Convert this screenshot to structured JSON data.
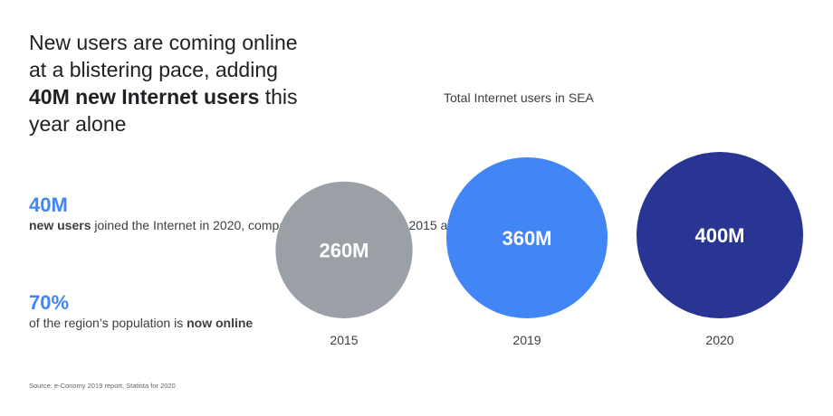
{
  "headline": {
    "part1": "New users are coming online at a blistering pace, adding ",
    "bold1": "40M new Internet users",
    "part2": " this year alone"
  },
  "stats": [
    {
      "value": "40M",
      "desc_bold": "new users",
      "desc_rest": " joined the Internet in 2020, compared to 100M between 2015 and 2019"
    },
    {
      "value": "70%",
      "desc_pre": "of the region’s population is ",
      "desc_bold": "now online"
    }
  ],
  "source": "Source: e-Conomy 2019 report, Statista for 2020",
  "colors": {
    "accent": "#4285f4",
    "gray": "#9aa0a6",
    "blue": "#4285f4",
    "navy": "#283593"
  },
  "chart_data": {
    "type": "bubble",
    "title": "Total Internet users in SEA",
    "categories": [
      "2015",
      "2019",
      "2020"
    ],
    "values": [
      260,
      360,
      400
    ],
    "unit": "M",
    "value_labels": [
      "260M",
      "360M",
      "400M"
    ],
    "colors": [
      "#9aa0a6",
      "#4285f4",
      "#283593"
    ]
  }
}
